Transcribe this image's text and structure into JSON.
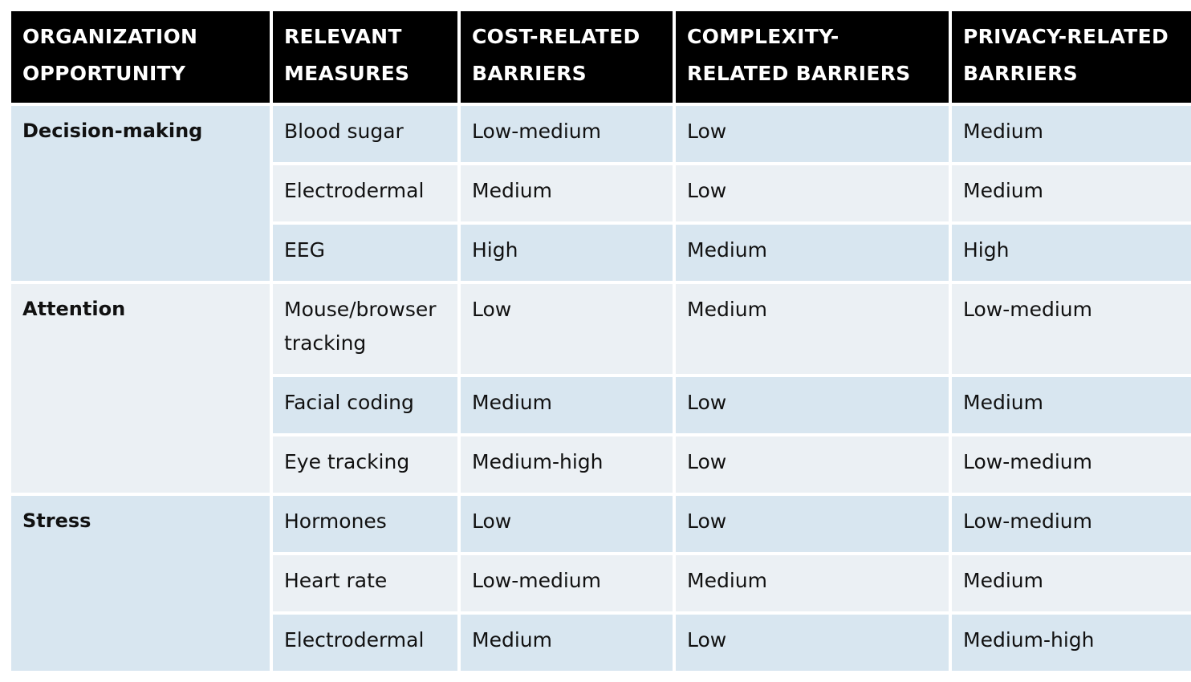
{
  "headers": [
    "ORGANIZATION OPPORTUNITY",
    "RELEVANT MEASURES",
    "COST-RELATED BARRIERS",
    "COMPLEXITY-RELATED BARRIERS",
    "PRIVACY-RELATED BARRIERS"
  ],
  "groups": [
    {
      "name": "Decision-making",
      "rows": [
        {
          "measure": "Blood sugar",
          "cost": "Low-medium",
          "complexity": "Low",
          "privacy": "Medium"
        },
        {
          "measure": "Electrodermal",
          "cost": "Medium",
          "complexity": "Low",
          "privacy": "Medium"
        },
        {
          "measure": "EEG",
          "cost": "High",
          "complexity": "Medium",
          "privacy": "High"
        }
      ]
    },
    {
      "name": "Attention",
      "rows": [
        {
          "measure": "Mouse/browser tracking",
          "cost": "Low",
          "complexity": "Medium",
          "privacy": "Low-medium"
        },
        {
          "measure": "Facial coding",
          "cost": "Medium",
          "complexity": "Low",
          "privacy": "Medium"
        },
        {
          "measure": "Eye tracking",
          "cost": "Medium-high",
          "complexity": "Low",
          "privacy": "Low-medium"
        }
      ]
    },
    {
      "name": "Stress",
      "rows": [
        {
          "measure": "Hormones",
          "cost": "Low",
          "complexity": "Low",
          "privacy": "Low-medium"
        },
        {
          "measure": "Heart rate",
          "cost": "Low-medium",
          "complexity": "Medium",
          "privacy": "Medium"
        },
        {
          "measure": "Electrodermal",
          "cost": "Medium",
          "complexity": "Low",
          "privacy": "Medium-high"
        }
      ]
    }
  ]
}
